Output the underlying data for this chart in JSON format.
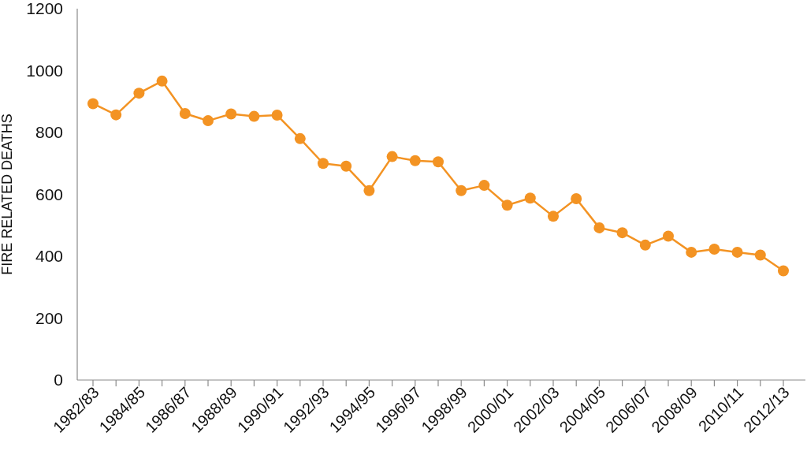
{
  "chart_data": {
    "type": "line",
    "ylabel": "FIRE RELATED DEATHS",
    "categories": [
      "1982/83",
      null,
      "1984/85",
      null,
      "1986/87",
      null,
      "1988/89",
      null,
      "1990/91",
      null,
      "1992/93",
      null,
      "1994/95",
      null,
      "1996/97",
      null,
      "1998/99",
      null,
      "2000/01",
      null,
      "2002/03",
      null,
      "2004/05",
      null,
      "2006/07",
      null,
      "2008/09",
      null,
      "2010/11",
      null,
      "2012/13"
    ],
    "values": [
      893,
      857,
      927,
      966,
      861,
      838,
      860,
      852,
      856,
      780,
      700,
      691,
      612,
      722,
      709,
      705,
      612,
      629,
      565,
      588,
      529,
      586,
      492,
      476,
      436,
      465,
      413,
      423,
      413,
      404,
      353
    ],
    "color": "#f39323",
    "marker": "circle",
    "ylim": [
      0,
      1200
    ],
    "yticks": [
      0,
      200,
      400,
      600,
      800,
      1000,
      1200
    ]
  }
}
